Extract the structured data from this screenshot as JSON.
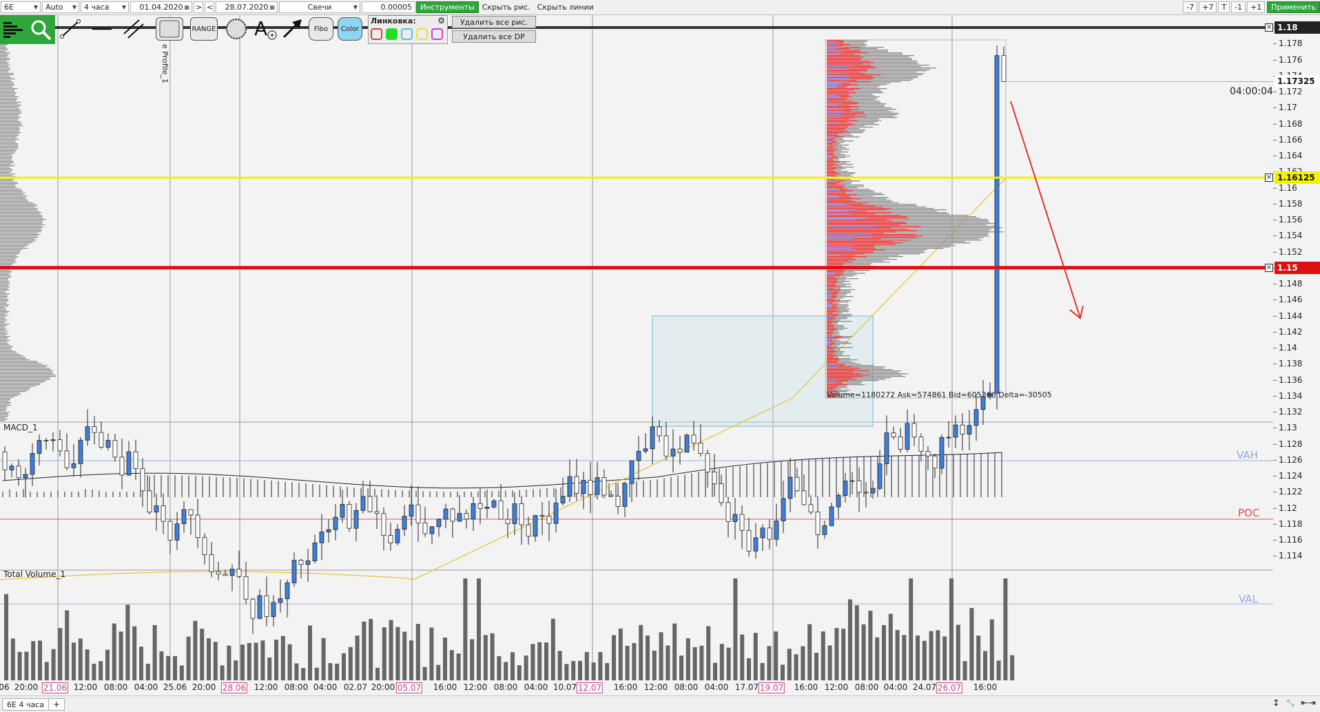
{
  "toolbar": {
    "symbol": "6E",
    "mode": "Auto",
    "timeframe": "4 часа",
    "date_from": "01.04.2020",
    "nav_next": ">",
    "nav_prev": "<",
    "date_to": "28.07.2020",
    "chart_type": "Свечи",
    "tick_size": "0.00005",
    "tools_button": "Инструменты",
    "hide_drawings": "Скрыть рис.",
    "hide_lines": "Скрыть линии",
    "zoom_buttons": [
      "-7",
      "+7",
      "T",
      "-1",
      "+1"
    ],
    "apply_button": "Применить"
  },
  "tools": {
    "range_label": "RANGE",
    "fibo_label": "Fibo",
    "color_label": "Color",
    "linking_title": "Линковка:",
    "linking_colors": [
      "#e53935",
      "#22dd22",
      "#42c6e0",
      "#ede236",
      "#d23ad2"
    ],
    "delete_all_drawings": "Удалить все рис.",
    "delete_all_dp": "Удалить все DP",
    "icons": [
      "volume-profile-icon",
      "magnifier-icon",
      "trend-line-icon",
      "horizontal-line-icon",
      "channel-icon",
      "rectangle-icon",
      "circle-icon",
      "text-add-icon",
      "arrow-icon",
      "gear-icon"
    ]
  },
  "chart": {
    "profile_label": "e Profile_1",
    "macd_label": "MACD_1",
    "volume_label": "Total Volume_1",
    "profile_stats": "Volume=1180272  Ask=574861  Bid=605366  Delta=-30505",
    "countdown": "04:00:04",
    "vah_label": "VAH",
    "poc_label": "POC",
    "val_label": "VAL",
    "colors": {
      "bull": "#3f7fd6",
      "bear": "#ffffff",
      "level_yellow": "#f2f200",
      "level_red": "#e01010",
      "profile_red": "#ee1c1c",
      "profile_gray": "#8a8a8a",
      "ma": "#e8c234"
    }
  },
  "price_axis": {
    "ticks": [
      "1.18",
      "1.178",
      "1.176",
      "1.174",
      "1.172",
      "1.17",
      "1.168",
      "1.166",
      "1.164",
      "1.162",
      "1.16",
      "1.158",
      "1.156",
      "1.154",
      "1.152",
      "1.15",
      "1.148",
      "1.146",
      "1.144",
      "1.142",
      "1.14",
      "1.138",
      "1.136",
      "1.134",
      "1.132",
      "1.13",
      "1.128",
      "1.126",
      "1.124",
      "1.122",
      "1.12",
      "1.118",
      "1.116",
      "1.114"
    ],
    "badges": [
      {
        "text": "1.18",
        "price": 1.18,
        "bg": "#222222",
        "fg": "#ffffff"
      },
      {
        "text": "1.17325",
        "price": 1.17325,
        "bg": "#ffffff",
        "fg": "#111111"
      },
      {
        "text": "1.16125",
        "price": 1.16125,
        "bg": "#f2f200",
        "fg": "#111111"
      },
      {
        "text": "1.15",
        "price": 1.15,
        "bg": "#e01010",
        "fg": "#ffffff"
      }
    ]
  },
  "time_axis": {
    "labels": [
      {
        "t": "06",
        "hl": false
      },
      {
        "t": "20:00",
        "hl": false
      },
      {
        "t": "21.06",
        "hl": true
      },
      {
        "t": "12:00",
        "hl": false
      },
      {
        "t": "08:00",
        "hl": false
      },
      {
        "t": "04:00",
        "hl": false
      },
      {
        "t": "25.06",
        "hl": false
      },
      {
        "t": "20:00",
        "hl": false
      },
      {
        "t": "28.06",
        "hl": true
      },
      {
        "t": "12:00",
        "hl": false
      },
      {
        "t": "08:00",
        "hl": false
      },
      {
        "t": "04:00",
        "hl": false
      },
      {
        "t": "02.07",
        "hl": false
      },
      {
        "t": "20:00",
        "hl": false
      },
      {
        "t": "05.07",
        "hl": true
      },
      {
        "t": "16:00",
        "hl": false
      },
      {
        "t": "12:00",
        "hl": false
      },
      {
        "t": "08:00",
        "hl": false
      },
      {
        "t": "04:00",
        "hl": false
      },
      {
        "t": "10.07",
        "hl": false
      },
      {
        "t": "12.07",
        "hl": true
      },
      {
        "t": "16:00",
        "hl": false
      },
      {
        "t": "12:00",
        "hl": false
      },
      {
        "t": "08:00",
        "hl": false
      },
      {
        "t": "04:00",
        "hl": false
      },
      {
        "t": "17.07",
        "hl": false
      },
      {
        "t": "19.07",
        "hl": true
      },
      {
        "t": "16:00",
        "hl": false
      },
      {
        "t": "12:00",
        "hl": false
      },
      {
        "t": "08:00",
        "hl": false
      },
      {
        "t": "04:00",
        "hl": false
      },
      {
        "t": "24.07",
        "hl": false
      },
      {
        "t": "26.07",
        "hl": true
      },
      {
        "t": "16:00",
        "hl": false
      }
    ]
  },
  "bottom": {
    "tab_label": "6E 4 часа",
    "add_tab": "+"
  }
}
